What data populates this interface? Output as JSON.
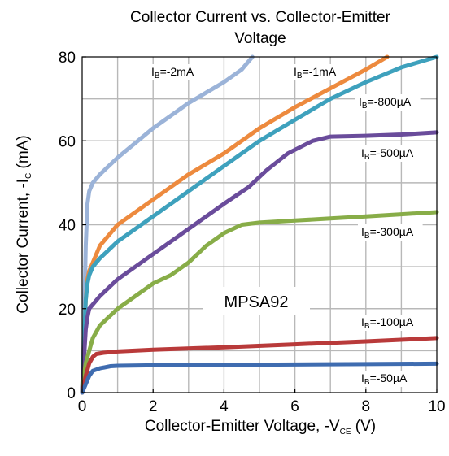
{
  "chart_data": {
    "type": "line",
    "title": "Collector Current vs. Collector-Emitter Voltage",
    "title_lines": [
      "Collector Current vs. Collector-Emitter",
      "Voltage"
    ],
    "xlabel": {
      "prefix": "Collector-Emitter Voltage, -V",
      "sub": "CE",
      "suffix": " (V)"
    },
    "ylabel": {
      "prefix": "Collector Current, -I",
      "sub": "C",
      "suffix": " (mA)"
    },
    "xlim": [
      0,
      10
    ],
    "ylim": [
      0,
      80
    ],
    "x_ticks": [
      "0",
      "2",
      "4",
      "6",
      "8",
      "10"
    ],
    "y_ticks": [
      "0",
      "20",
      "40",
      "60",
      "80"
    ],
    "grid": true,
    "annotation": "MPSA92",
    "series": [
      {
        "name": "IB=-2mA",
        "label": {
          "prefix": "I",
          "sub": "B",
          "suffix": "=-2mA"
        },
        "color": "#9bb3d8",
        "points": [
          [
            0,
            0
          ],
          [
            0.05,
            15
          ],
          [
            0.1,
            35
          ],
          [
            0.15,
            45
          ],
          [
            0.2,
            48
          ],
          [
            0.3,
            50
          ],
          [
            0.5,
            52
          ],
          [
            1,
            56
          ],
          [
            2,
            63
          ],
          [
            3,
            69
          ],
          [
            4,
            74
          ],
          [
            4.5,
            77
          ],
          [
            4.8,
            80
          ]
        ]
      },
      {
        "name": "IB=-1mA",
        "label": {
          "prefix": "I",
          "sub": "B",
          "suffix": "=-1mA"
        },
        "color": "#ed8a3e",
        "points": [
          [
            0,
            0
          ],
          [
            0.05,
            12
          ],
          [
            0.1,
            22
          ],
          [
            0.15,
            27
          ],
          [
            0.2,
            29
          ],
          [
            0.3,
            31
          ],
          [
            0.5,
            35
          ],
          [
            1,
            40
          ],
          [
            2,
            46
          ],
          [
            3,
            52
          ],
          [
            4,
            57
          ],
          [
            5,
            63
          ],
          [
            6,
            68
          ],
          [
            7,
            72.5
          ],
          [
            8,
            77
          ],
          [
            8.6,
            80
          ]
        ]
      },
      {
        "name": "IB=-800µA",
        "label": {
          "prefix": "I",
          "sub": "B",
          "suffix": "=-800µA"
        },
        "color": "#3ea1bd",
        "points": [
          [
            0,
            0
          ],
          [
            0.05,
            12
          ],
          [
            0.1,
            22
          ],
          [
            0.15,
            26
          ],
          [
            0.2,
            28
          ],
          [
            0.3,
            30
          ],
          [
            0.5,
            32
          ],
          [
            1,
            36
          ],
          [
            2,
            42
          ],
          [
            3,
            48
          ],
          [
            4,
            54
          ],
          [
            5,
            60
          ],
          [
            6,
            65
          ],
          [
            7,
            70
          ],
          [
            8,
            74
          ],
          [
            9,
            77.5
          ],
          [
            10,
            80
          ]
        ]
      },
      {
        "name": "IB=-500µA",
        "label": {
          "prefix": "I",
          "sub": "B",
          "suffix": "=-500µA"
        },
        "color": "#6a4c9b",
        "points": [
          [
            0,
            0
          ],
          [
            0.05,
            8
          ],
          [
            0.1,
            15
          ],
          [
            0.15,
            18
          ],
          [
            0.2,
            20
          ],
          [
            0.5,
            23
          ],
          [
            1,
            27
          ],
          [
            2,
            33
          ],
          [
            3,
            39
          ],
          [
            4,
            45
          ],
          [
            4.7,
            49
          ],
          [
            5.2,
            53
          ],
          [
            5.8,
            57
          ],
          [
            6.5,
            60
          ],
          [
            7,
            61
          ],
          [
            8,
            61.2
          ],
          [
            9,
            61.5
          ],
          [
            10,
            62
          ]
        ]
      },
      {
        "name": "IB=-300µA",
        "label": {
          "prefix": "I",
          "sub": "B",
          "suffix": "=-300µA"
        },
        "color": "#88ad48",
        "points": [
          [
            0,
            0
          ],
          [
            0.05,
            4
          ],
          [
            0.1,
            7
          ],
          [
            0.2,
            10
          ],
          [
            0.3,
            13
          ],
          [
            0.5,
            16
          ],
          [
            1,
            20
          ],
          [
            1.5,
            23
          ],
          [
            2,
            26
          ],
          [
            2.5,
            28
          ],
          [
            3,
            31
          ],
          [
            3.5,
            35
          ],
          [
            4,
            38
          ],
          [
            4.5,
            40
          ],
          [
            5,
            40.5
          ],
          [
            6,
            41
          ],
          [
            7,
            41.5
          ],
          [
            8,
            42
          ],
          [
            9,
            42.5
          ],
          [
            10,
            43
          ]
        ]
      },
      {
        "name": "IB=-100µA",
        "label": {
          "prefix": "I",
          "sub": "B",
          "suffix": "=-100µA"
        },
        "color": "#b93a3a",
        "points": [
          [
            0,
            0
          ],
          [
            0.1,
            4
          ],
          [
            0.2,
            7
          ],
          [
            0.3,
            8.5
          ],
          [
            0.4,
            9.2
          ],
          [
            0.6,
            9.5
          ],
          [
            1,
            9.8
          ],
          [
            2,
            10.2
          ],
          [
            4,
            10.8
          ],
          [
            6,
            11.5
          ],
          [
            8,
            12.2
          ],
          [
            10,
            13
          ]
        ]
      },
      {
        "name": "IB=-50µA",
        "label": {
          "prefix": "I",
          "sub": "B",
          "suffix": "=-50µA"
        },
        "color": "#3f6cb0",
        "points": [
          [
            0,
            0
          ],
          [
            0.1,
            2
          ],
          [
            0.2,
            4
          ],
          [
            0.3,
            5.2
          ],
          [
            0.5,
            5.8
          ],
          [
            0.8,
            6.3
          ],
          [
            1,
            6.4
          ],
          [
            2,
            6.5
          ],
          [
            4,
            6.6
          ],
          [
            6,
            6.7
          ],
          [
            8,
            6.8
          ],
          [
            10,
            6.9
          ]
        ]
      }
    ]
  }
}
